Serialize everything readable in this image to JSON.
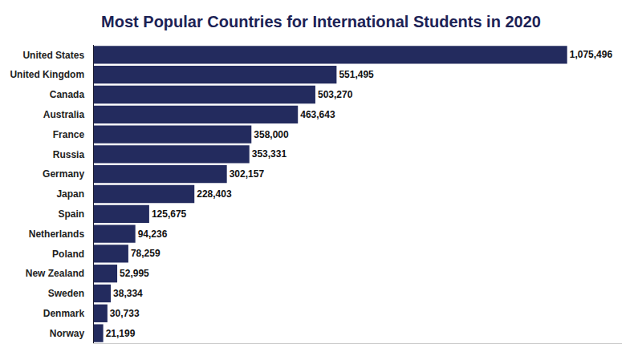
{
  "chart_data": {
    "type": "bar",
    "orientation": "horizontal",
    "title": "Most Popular Countries for International Students in 2020",
    "categories": [
      "United States",
      "United Kingdom",
      "Canada",
      "Australia",
      "France",
      "Russia",
      "Germany",
      "Japan",
      "Spain",
      "Netherlands",
      "Poland",
      "New Zealand",
      "Sweden",
      "Denmark",
      "Norway"
    ],
    "values": [
      1075496,
      551495,
      503270,
      463643,
      358000,
      353331,
      302157,
      228403,
      125675,
      94236,
      78259,
      52995,
      38334,
      30733,
      21199
    ],
    "value_labels": [
      "1,075,496",
      "551,495",
      "503,270",
      "463,643",
      "358,000",
      "353,331",
      "302,157",
      "228,403",
      "125,675",
      "94,236",
      "78,259",
      "52,995",
      "38,334",
      "30,733",
      "21,199"
    ],
    "color": "#232b5e",
    "xlim": [
      0,
      1200000
    ],
    "xticks": [],
    "grid": false,
    "data_labels": true,
    "tick_labels": "y"
  }
}
